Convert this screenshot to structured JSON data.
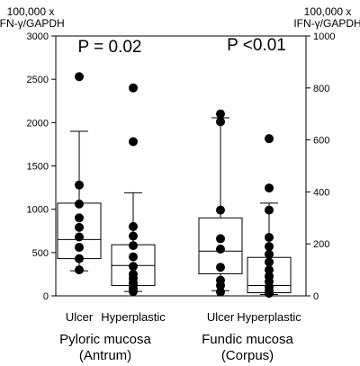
{
  "chart_data": {
    "type": "box",
    "left_axis": {
      "label_line1": "100,000 x",
      "label_line2": "IFN-γ/GAPDH",
      "ylim": [
        0,
        3000
      ],
      "ticks": [
        0,
        500,
        1000,
        1500,
        2000,
        2500,
        3000
      ]
    },
    "right_axis": {
      "label_line1": "100,000 x",
      "label_line2": "IFN-γ/GAPDH",
      "ylim": [
        0,
        1000
      ],
      "ticks": [
        0,
        200,
        400,
        600,
        800,
        1000
      ]
    },
    "groups": [
      {
        "name_line1": "Pyloric mucosa",
        "name_line2": "(Antrum)",
        "p_value": "P = 0.02",
        "axis": "left",
        "boxes": [
          {
            "category": "Ulcer",
            "whisker_low": 290,
            "q1": 430,
            "median": 650,
            "q3": 1070,
            "whisker_high": 1900,
            "points": [
              2530,
              1280,
              1060,
              900,
              790,
              680,
              560,
              430,
              300
            ]
          },
          {
            "category": "Hyperplastic",
            "whisker_low": 50,
            "q1": 120,
            "median": 350,
            "q3": 590,
            "whisker_high": 1190,
            "points": [
              2400,
              1780,
              800,
              690,
              580,
              450,
              340,
              250,
              200,
              150,
              120,
              80,
              50
            ]
          }
        ]
      },
      {
        "name_line1": "Fundic mucosa",
        "name_line2": "(Corpus)",
        "p_value": "P <0.01",
        "axis": "right",
        "boxes": [
          {
            "category": "Ulcer",
            "whisker_low": 20,
            "q1": 85,
            "median": 172,
            "q3": 300,
            "whisker_high": 685,
            "points": [
              700,
              670,
              330,
              220,
              180,
              110,
              60,
              40,
              15
            ]
          },
          {
            "category": "Hyperplastic",
            "whisker_low": 5,
            "q1": 12,
            "median": 40,
            "q3": 148,
            "whisker_high": 357,
            "points": [
              605,
              415,
              330,
              225,
              190,
              160,
              130,
              100,
              75,
              55,
              35,
              20,
              10
            ]
          }
        ]
      }
    ]
  }
}
